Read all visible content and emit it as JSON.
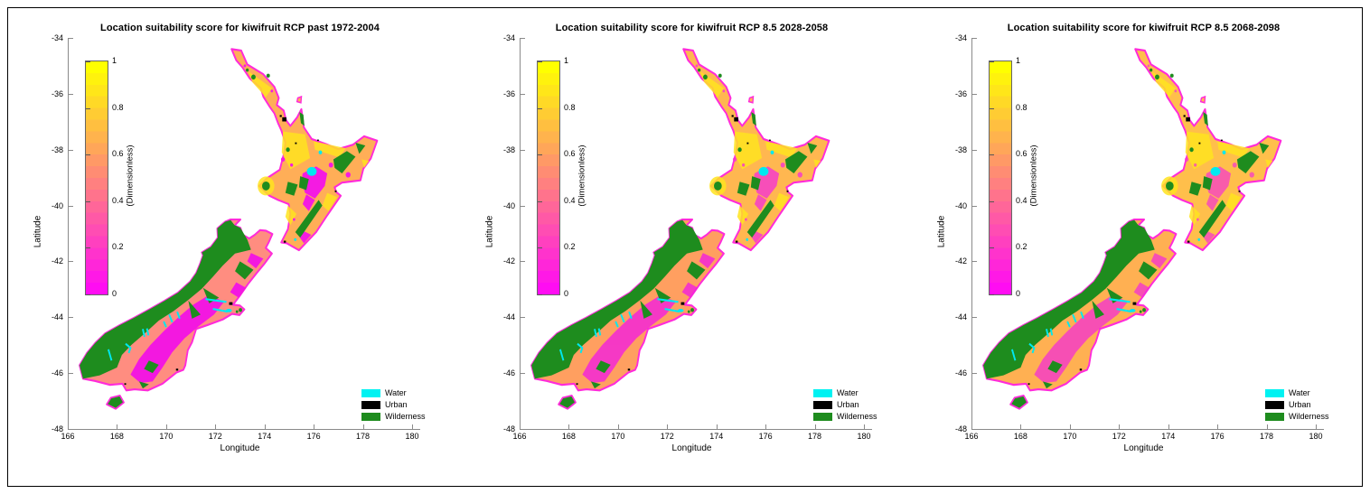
{
  "figure": {
    "background": "#ffffff",
    "border_color": "#000000"
  },
  "panels": [
    {
      "title": "Location suitability score for kiwifruit RCP past 1972-2004",
      "map_colors": {
        "ni": "#ffae57",
        "ni_low": "#f41be2",
        "si": "#ff8d80",
        "si_low": "#f318e0",
        "low_opacity": "1"
      }
    },
    {
      "title": "Location suitability score for kiwifruit RCP 8.5 2028-2058",
      "map_colors": {
        "ni": "#ffb750",
        "ni_low": "#f637d0",
        "si": "#ff9f60",
        "si_low": "#f322dc",
        "low_opacity": "0.82"
      }
    },
    {
      "title": "Location suitability score for kiwifruit RCP 8.5 2068-2098",
      "map_colors": {
        "ni": "#ffbf4b",
        "ni_low": "#f637d0",
        "si": "#ffb052",
        "si_low": "#f32ada",
        "low_opacity": "0.72"
      }
    }
  ],
  "axes": {
    "x": {
      "label": "Longitude",
      "ticks": [
        "166",
        "168",
        "170",
        "172",
        "174",
        "176",
        "178",
        "180"
      ]
    },
    "y": {
      "label": "Latitude",
      "ticks": [
        "-34",
        "-36",
        "-38",
        "-40",
        "-42",
        "-44",
        "-46",
        "-48"
      ]
    }
  },
  "colorbar": {
    "label": "(Dimensionless)",
    "ticks": [
      "1",
      "0.8",
      "0.6",
      "0.4",
      "0.2",
      "0"
    ],
    "top_color": "#ffff00",
    "bottom_color": "#ff00ff",
    "steps": 20
  },
  "legend": {
    "items": [
      {
        "label": "Water",
        "color": "#00f2f2"
      },
      {
        "label": "Urban",
        "color": "#000000"
      },
      {
        "label": "Wilderness",
        "color": "#1e8c1e"
      }
    ]
  },
  "map_features": {
    "water": "#00e8f0",
    "urban": "#000000",
    "wilderness": "#1e8c1e",
    "coast_fringe": "#ff2bd9",
    "yellow_patch": "#ffe41f"
  },
  "chart_data": [
    {
      "type": "heatmap",
      "title": "Location suitability score for kiwifruit RCP past 1972-2004",
      "xlabel": "Longitude",
      "ylabel": "Latitude",
      "xlim": [
        166,
        180
      ],
      "ylim": [
        -48,
        -34
      ],
      "value_label": "(Dimensionless)",
      "value_range": [
        0,
        1
      ],
      "colormap": "spring (magenta 0 to yellow 1)",
      "legend": [
        "Water",
        "Urban",
        "Wilderness"
      ],
      "legend_position": "lower right",
      "region_estimates": {
        "Northland": 0.8,
        "Auckland": "urban",
        "Waikato": 0.85,
        "Bay of Plenty": 0.9,
        "Coromandel": 0.7,
        "Central Plateau": 0.15,
        "Gisborne-East Cape": 0.7,
        "Hawkes Bay": 0.65,
        "Taranaki ring plain": 0.75,
        "Manawatu-Whanganui": 0.6,
        "Wellington-Wairarapa": 0.55,
        "Nelson-Marlborough": 0.45,
        "West Coast & Southern Alps": "wilderness",
        "Canterbury Plains": 0.35,
        "Central Otago": 0.1,
        "Otago coast": 0.4,
        "Southland": 0.3,
        "Fiordland": "wilderness",
        "Lake Taupo": "water",
        "Stewart Island": "wilderness"
      }
    },
    {
      "type": "heatmap",
      "title": "Location suitability score for kiwifruit RCP 8.5 2028-2058",
      "xlabel": "Longitude",
      "ylabel": "Latitude",
      "xlim": [
        166,
        180
      ],
      "ylim": [
        -48,
        -34
      ],
      "value_label": "(Dimensionless)",
      "value_range": [
        0,
        1
      ],
      "colormap": "spring (magenta 0 to yellow 1)",
      "legend": [
        "Water",
        "Urban",
        "Wilderness"
      ],
      "legend_position": "lower right",
      "region_estimates": {
        "Northland": 0.85,
        "Auckland": "urban",
        "Waikato": 0.9,
        "Bay of Plenty": 0.9,
        "Coromandel": 0.75,
        "Central Plateau": 0.25,
        "Gisborne-East Cape": 0.75,
        "Hawkes Bay": 0.7,
        "Taranaki ring plain": 0.8,
        "Manawatu-Whanganui": 0.65,
        "Wellington-Wairarapa": 0.6,
        "Nelson-Marlborough": 0.55,
        "West Coast & Southern Alps": "wilderness",
        "Canterbury Plains": 0.55,
        "Central Otago": 0.15,
        "Otago coast": 0.5,
        "Southland": 0.45,
        "Fiordland": "wilderness",
        "Lake Taupo": "water",
        "Stewart Island": "wilderness"
      }
    },
    {
      "type": "heatmap",
      "title": "Location suitability score for kiwifruit RCP 8.5 2068-2098",
      "xlabel": "Longitude",
      "ylabel": "Latitude",
      "xlim": [
        166,
        180
      ],
      "ylim": [
        -48,
        -34
      ],
      "value_label": "(Dimensionless)",
      "value_range": [
        0,
        1
      ],
      "colormap": "spring (magenta 0 to yellow 1)",
      "legend": [
        "Water",
        "Urban",
        "Wilderness"
      ],
      "legend_position": "lower right",
      "region_estimates": {
        "Northland": 0.85,
        "Auckland": "urban",
        "Waikato": 0.9,
        "Bay of Plenty": 0.9,
        "Coromandel": 0.8,
        "Central Plateau": 0.3,
        "Gisborne-East Cape": 0.8,
        "Hawkes Bay": 0.75,
        "Taranaki ring plain": 0.8,
        "Manawatu-Whanganui": 0.7,
        "Wellington-Wairarapa": 0.65,
        "Nelson-Marlborough": 0.6,
        "West Coast & Southern Alps": "wilderness",
        "Canterbury Plains": 0.7,
        "Central Otago": 0.2,
        "Otago coast": 0.6,
        "Southland": 0.55,
        "Fiordland": "wilderness",
        "Lake Taupo": "water",
        "Stewart Island": "wilderness"
      }
    }
  ]
}
